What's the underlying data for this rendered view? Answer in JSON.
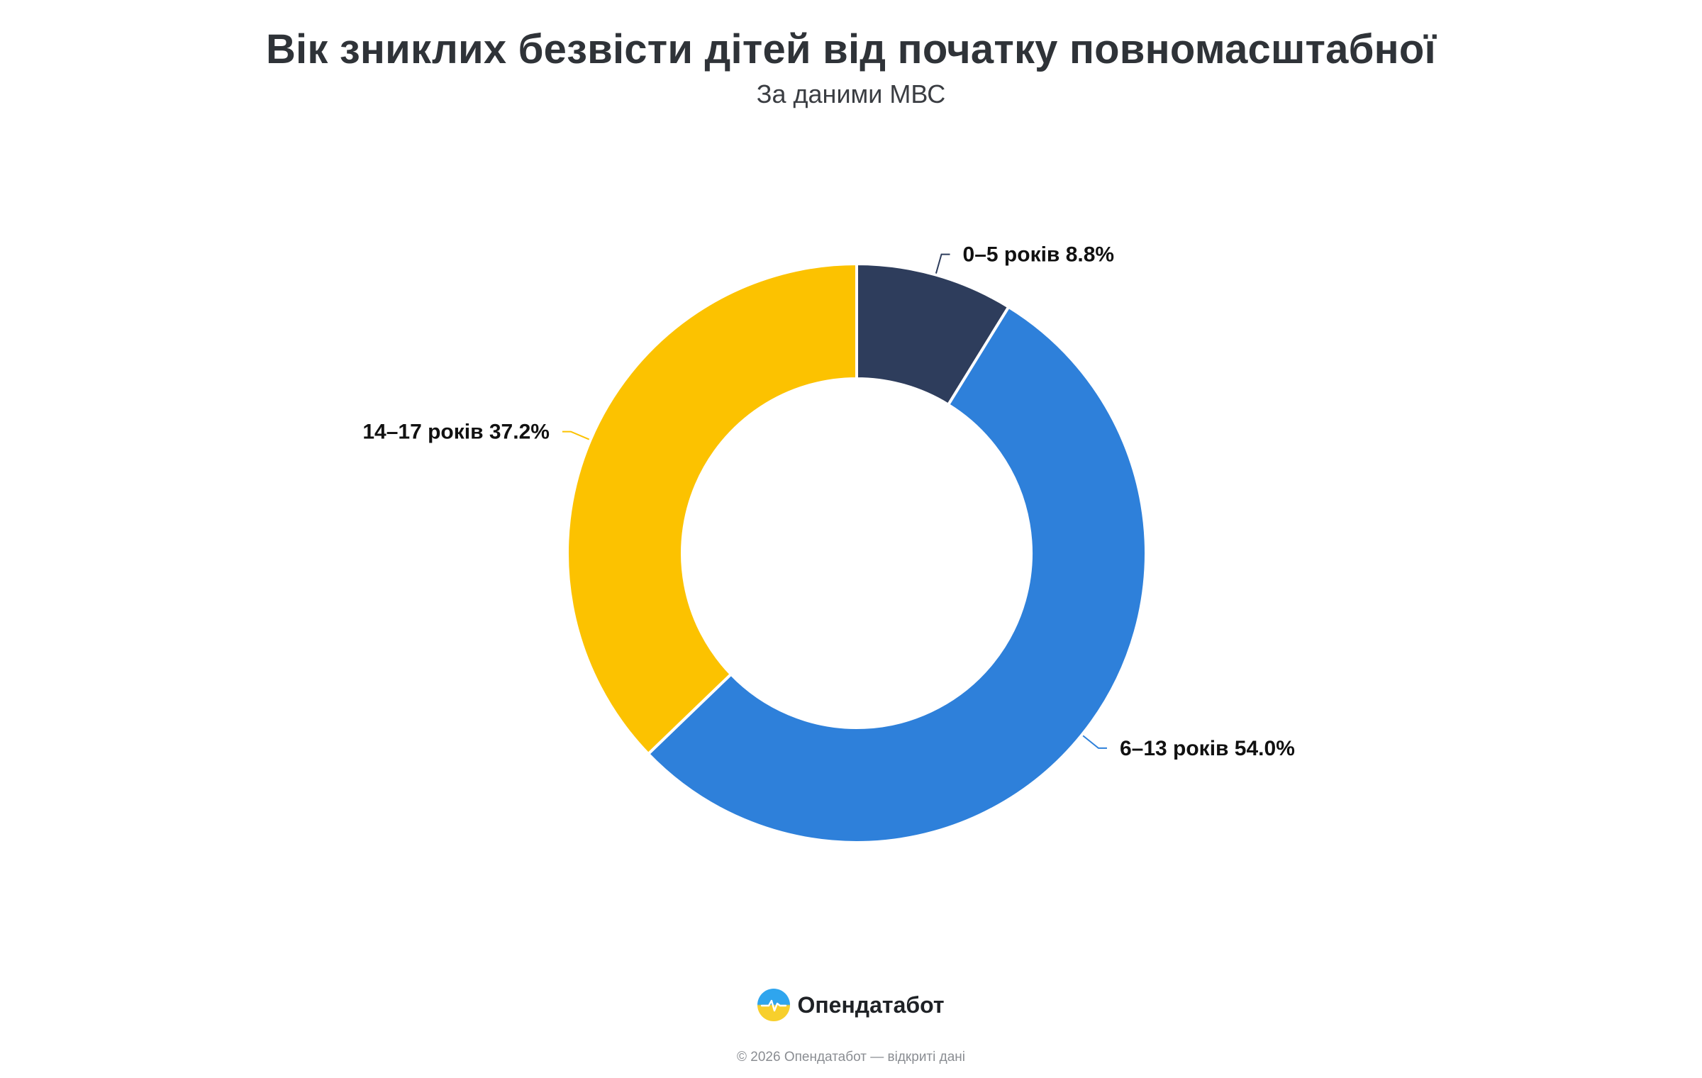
{
  "chart_data": {
    "type": "pie",
    "style": "donut",
    "title": "Вік зниклих безвісти дітей від початку повномасштабної",
    "subtitle": "За даними МВС",
    "legend": "none",
    "slices": [
      {
        "label": "0–5 років 8.8%",
        "value": 8.8,
        "color": "#2e3d5c"
      },
      {
        "label": "6–13 років 54.0%",
        "value": 54.0,
        "color": "#2e80da"
      },
      {
        "label": "14–17 років 37.2%",
        "value": 37.2,
        "color": "#fcc200"
      }
    ]
  },
  "logo": {
    "text": "Опендатабот",
    "icon": "opendatabot-logo-icon"
  },
  "footer": {
    "copyright": "© 2026 Опендатабот — відкриті дані"
  }
}
